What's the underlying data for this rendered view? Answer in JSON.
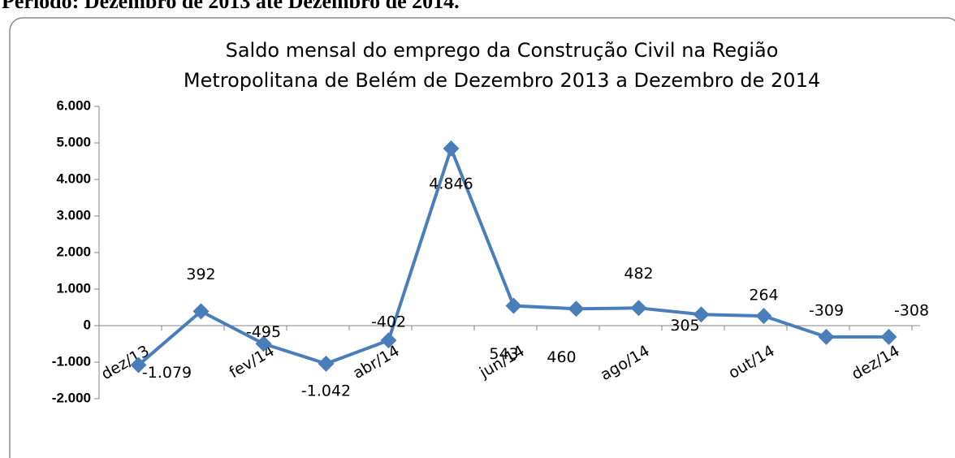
{
  "page": {
    "heading": "Período: Dezembro de 2013 até Dezembro de 2014."
  },
  "chart_data": {
    "type": "line",
    "title": [
      "Saldo mensal do emprego da Construção Civil na Região",
      "Metropolitana de Belém de Dezembro 2013 a Dezembro de 2014"
    ],
    "categories": [
      "dez/13",
      null,
      "fev/14",
      null,
      "abr/14",
      null,
      "jun/14",
      null,
      "ago/14",
      null,
      "out/14",
      null,
      "dez/14"
    ],
    "series": [
      {
        "color": "#4a7ebb",
        "values": [
          -1079,
          392,
          -495,
          -1042,
          -402,
          4846,
          543,
          460,
          482,
          305,
          264,
          -309,
          -308
        ],
        "value_labels": [
          "-1.079",
          "392",
          "-495",
          "-1.042",
          "-402",
          "4.846",
          "543",
          "460",
          "482",
          "305",
          "264",
          "-309",
          "-308"
        ]
      }
    ],
    "ylim": [
      -2000,
      6000
    ],
    "yticks": [
      {
        "value": -2000,
        "label": "-2.000"
      },
      {
        "value": -1000,
        "label": "-1.000"
      },
      0,
      {
        "value": 1000,
        "label": "1.000"
      },
      {
        "value": 2000,
        "label": "2.000"
      },
      {
        "value": 3000,
        "label": "3.000"
      },
      {
        "value": 4000,
        "label": "4.000"
      },
      {
        "value": 5000,
        "label": "5.000"
      },
      {
        "value": 6000,
        "label": "6.000"
      }
    ],
    "grid": false
  }
}
